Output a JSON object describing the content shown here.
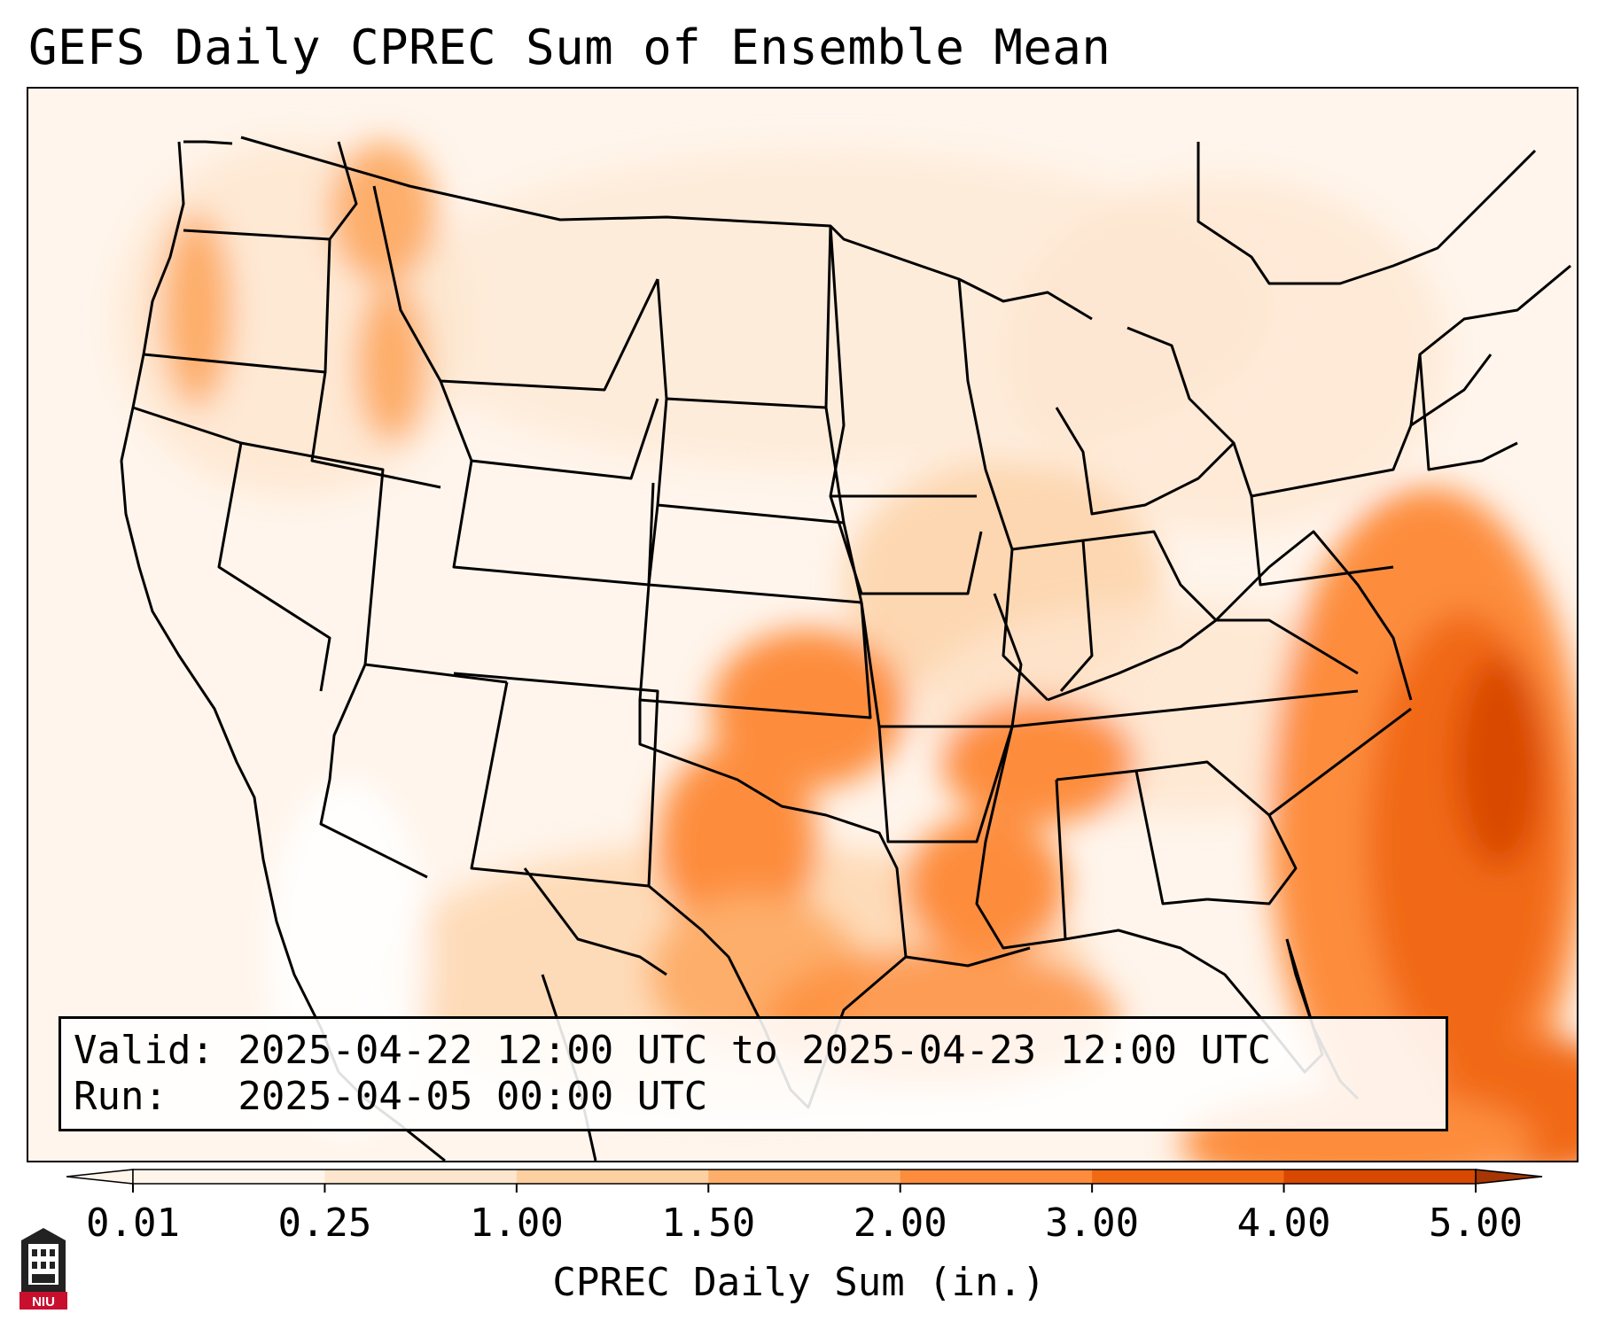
{
  "title": "GEFS Daily CPREC Sum of Ensemble Mean",
  "info": {
    "valid_line": "Valid: 2025-04-22 12:00 UTC to 2025-04-23 12:00 UTC",
    "run_line": "Run:   2025-04-05 00:00 UTC"
  },
  "colorbar": {
    "label": "CPREC Daily Sum (in.)",
    "ticks": [
      "0.01",
      "0.25",
      "1.00",
      "1.50",
      "2.00",
      "3.00",
      "4.00",
      "5.00"
    ],
    "colors": [
      "#fff5eb",
      "#fee6ce",
      "#fdd0a2",
      "#fdae6b",
      "#fd8d3c",
      "#f16913",
      "#d94801",
      "#a63603"
    ],
    "extend": "both"
  },
  "colors": {
    "land_base": "#fff5ec",
    "border_lines": "#000000",
    "frame": "#000000"
  },
  "logo": {
    "icon": "niu-logo-icon",
    "text": "NIU"
  }
}
